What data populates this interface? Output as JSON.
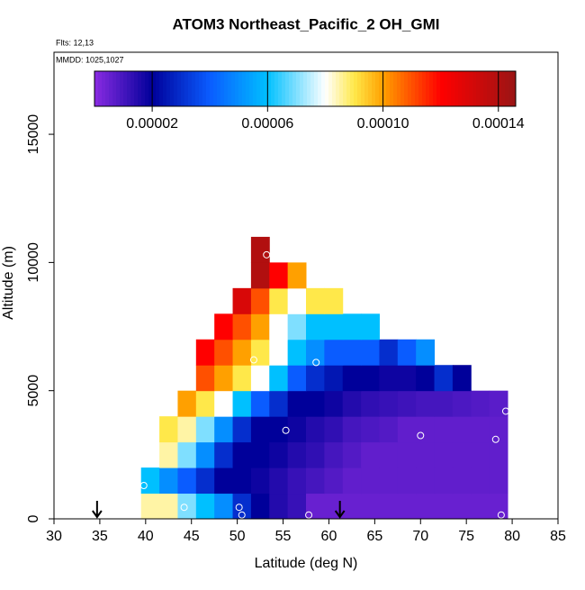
{
  "chart_data": {
    "type": "heatmap",
    "title": "ATOM3 Northeast_Pacific_2 OH_GMI",
    "annotations": [
      "Flts: 12,13",
      "MMDD: 1025,1027"
    ],
    "x_label": "Latitude (deg N)",
    "y_label": "Altitude (m)",
    "xlim": [
      30,
      85
    ],
    "xticks": [
      30,
      35,
      40,
      45,
      50,
      55,
      60,
      65,
      70,
      75,
      80,
      85
    ],
    "ylim": [
      0,
      18200
    ],
    "yticks": [
      0,
      5000,
      10000,
      15000
    ],
    "zlim": [
      0,
      0.000146
    ],
    "zticks": [
      2e-05,
      6e-05,
      {
        "value": 0.0001,
        "label": "0.00010"
      },
      0.00014
    ],
    "colorscale": [
      [
        0,
        "#8a2be2"
      ],
      [
        2e-05,
        "#00009a"
      ],
      [
        4e-05,
        "#0a5cff"
      ],
      [
        6e-05,
        "#00c0ff"
      ],
      [
        8e-05,
        "#ffffff"
      ],
      [
        9e-05,
        "#ffe84a"
      ],
      [
        0.0001,
        "#ffa000"
      ],
      [
        0.00012,
        "#ff0000"
      ],
      [
        0.000146,
        "#9a1414"
      ]
    ],
    "x_edges": [
      39.5,
      41.5,
      43.5,
      45.5,
      47.5,
      49.5,
      51.5,
      53.5,
      55.5,
      57.5,
      59.5,
      61.5,
      63.5,
      65.5,
      67.5,
      69.5,
      71.5,
      73.5,
      75.5,
      77.5,
      79.5
    ],
    "y_edges": [
      0,
      1000,
      2000,
      3000,
      4000,
      5000,
      6000,
      7000,
      8000,
      9000,
      10000,
      11000
    ],
    "z": [
      [
        8.5e-05,
        8.5e-05,
        7e-05,
        6e-05,
        5e-05,
        3e-05,
        2e-05,
        1.5e-05,
        1.2e-05,
        5e-06,
        5e-06,
        5e-06,
        5e-06,
        5e-06,
        5e-06,
        5e-06,
        5e-06,
        5e-06,
        5e-06,
        5e-06
      ],
      [
        6e-05,
        5e-05,
        4e-05,
        3e-05,
        2e-05,
        2e-05,
        1.8e-05,
        1.5e-05,
        1.2e-05,
        1e-05,
        8e-06,
        6e-06,
        6e-06,
        6e-06,
        6e-06,
        6e-06,
        6e-06,
        6e-06,
        6e-06,
        6e-06
      ],
      [
        null,
        8.5e-05,
        7e-05,
        5e-05,
        3e-05,
        2e-05,
        2e-05,
        1.8e-05,
        1.5e-05,
        1.3e-05,
        1e-05,
        8e-06,
        6e-06,
        6e-06,
        6e-06,
        6e-06,
        6e-06,
        6e-06,
        6e-06,
        6e-06
      ],
      [
        null,
        9e-05,
        8.5e-05,
        7e-05,
        5e-05,
        3e-05,
        2e-05,
        2e-05,
        1.8e-05,
        1.5e-05,
        1.3e-05,
        1e-05,
        9e-06,
        8e-06,
        6e-06,
        6e-06,
        6e-06,
        6e-06,
        6e-06,
        6e-06
      ],
      [
        null,
        null,
        0.0001,
        9e-05,
        8e-05,
        6e-05,
        4e-05,
        3e-05,
        2e-05,
        2e-05,
        1.8e-05,
        1.5e-05,
        1.3e-05,
        1.2e-05,
        1.1e-05,
        1e-05,
        1e-05,
        9e-06,
        8e-06,
        7e-06
      ],
      [
        null,
        null,
        null,
        0.00011,
        0.0001,
        9e-05,
        8e-05,
        6e-05,
        4e-05,
        3e-05,
        2.5e-05,
        2e-05,
        2e-05,
        1.8e-05,
        1.8e-05,
        2e-05,
        3e-05,
        2e-05,
        null,
        null
      ],
      [
        null,
        null,
        null,
        0.00012,
        0.00011,
        0.0001,
        9e-05,
        8e-05,
        6e-05,
        5e-05,
        4e-05,
        4e-05,
        4e-05,
        3e-05,
        4e-05,
        5e-05,
        null,
        null,
        null,
        null
      ],
      [
        null,
        null,
        null,
        null,
        0.00012,
        0.00011,
        0.0001,
        8e-05,
        7e-05,
        6e-05,
        6e-05,
        6e-05,
        6e-05,
        null,
        null,
        null,
        null,
        null,
        null,
        null
      ],
      [
        null,
        null,
        null,
        null,
        null,
        0.00013,
        0.00011,
        9e-05,
        8e-05,
        9e-05,
        9e-05,
        null,
        null,
        null,
        null,
        null,
        null,
        null,
        null,
        null
      ],
      [
        null,
        null,
        null,
        null,
        null,
        null,
        0.00014,
        0.00012,
        0.0001,
        null,
        null,
        null,
        null,
        null,
        null,
        null,
        null,
        null,
        null,
        null
      ],
      [
        null,
        null,
        null,
        null,
        null,
        null,
        0.00014,
        null,
        null,
        null,
        null,
        null,
        null,
        null,
        null,
        null,
        null,
        null,
        null,
        null
      ]
    ],
    "points": {
      "x": [
        39.8,
        44.2,
        50.2,
        50.5,
        57.8,
        53.2,
        51.8,
        58.6,
        55.3,
        70,
        78.2,
        79.3,
        78.8
      ],
      "y": [
        1300,
        450,
        450,
        150,
        150,
        10300,
        6200,
        6100,
        3450,
        3250,
        3100,
        4200,
        150
      ]
    },
    "arrows_x": [
      34.7,
      61.2
    ]
  }
}
